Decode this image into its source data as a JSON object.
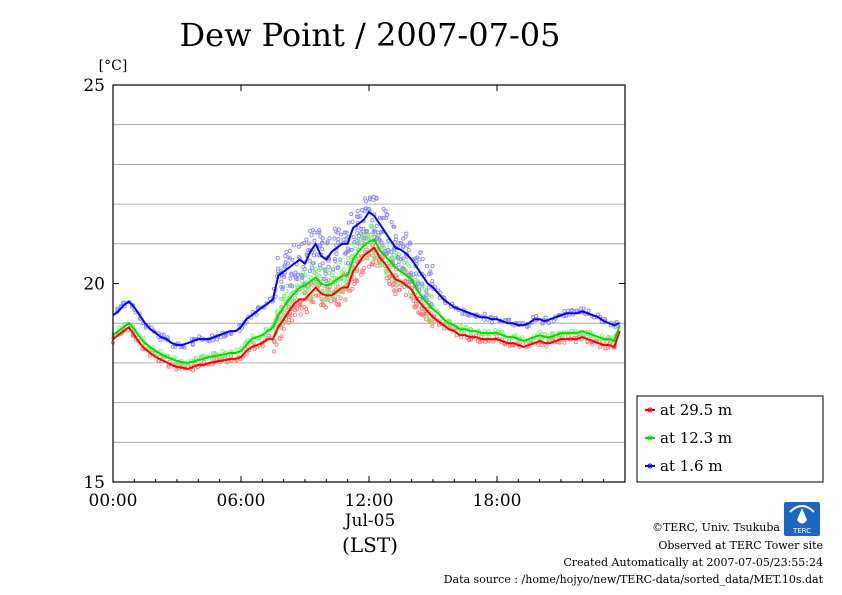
{
  "chart_data": {
    "type": "line",
    "title": "Dew Point / 2007-07-05",
    "ylabel": "[°C]",
    "ylim": [
      15,
      25
    ],
    "yticks": [
      15,
      20,
      25
    ],
    "y_gridlines": [
      16,
      17,
      18,
      19,
      21,
      22,
      23,
      24
    ],
    "xlim": [
      0,
      24
    ],
    "xticks": [
      {
        "value": 0,
        "label": "00:00"
      },
      {
        "value": 6,
        "label": "06:00"
      },
      {
        "value": 12,
        "label": "12:00"
      },
      {
        "value": 18,
        "label": "18:00"
      }
    ],
    "date_label": "Jul-05",
    "time_zone_label": "(LST)",
    "grid": "horizontal",
    "legend_position": "bottom-right",
    "series": [
      {
        "name": "at 29.5 m",
        "color": "#ff0000",
        "scatter_color": "#ff7a7a",
        "x": [
          0,
          0.25,
          0.5,
          0.75,
          1,
          1.25,
          1.5,
          1.75,
          2,
          2.25,
          2.5,
          2.75,
          3,
          3.25,
          3.5,
          3.75,
          4,
          4.25,
          4.5,
          4.75,
          5,
          5.25,
          5.5,
          5.75,
          6,
          6.25,
          6.5,
          6.75,
          7,
          7.25,
          7.5,
          7.75,
          8,
          8.25,
          8.5,
          8.75,
          9,
          9.25,
          9.5,
          9.75,
          10,
          10.25,
          10.5,
          10.75,
          11,
          11.25,
          11.5,
          11.75,
          12,
          12.25,
          12.5,
          12.75,
          13,
          13.25,
          13.5,
          13.75,
          14,
          14.25,
          14.5,
          14.75,
          15,
          15.25,
          15.5,
          15.75,
          16,
          16.25,
          16.5,
          16.75,
          17,
          17.25,
          17.5,
          17.75,
          18,
          18.25,
          18.5,
          18.75,
          19,
          19.25,
          19.5,
          19.75,
          20,
          20.25,
          20.5,
          20.75,
          21,
          21.25,
          21.5,
          21.75,
          22,
          22.25,
          22.5,
          22.75,
          23,
          23.25,
          23.5,
          23.75
        ],
        "values": [
          18.6,
          18.7,
          18.8,
          18.9,
          18.7,
          18.5,
          18.35,
          18.25,
          18.15,
          18.08,
          18.02,
          17.95,
          17.9,
          17.88,
          17.85,
          17.9,
          17.95,
          17.95,
          18.0,
          18.02,
          18.05,
          18.07,
          18.1,
          18.1,
          18.15,
          18.3,
          18.4,
          18.45,
          18.5,
          18.6,
          18.6,
          18.9,
          19.1,
          19.3,
          19.5,
          19.6,
          19.6,
          19.75,
          19.9,
          19.75,
          19.7,
          19.7,
          19.8,
          19.9,
          19.9,
          20.3,
          20.5,
          20.7,
          20.8,
          20.9,
          20.65,
          20.5,
          20.3,
          20.1,
          20.05,
          19.95,
          19.85,
          19.6,
          19.45,
          19.3,
          19.15,
          19.05,
          18.95,
          18.85,
          18.8,
          18.7,
          18.7,
          18.65,
          18.65,
          18.6,
          18.6,
          18.6,
          18.6,
          18.55,
          18.5,
          18.5,
          18.45,
          18.4,
          18.45,
          18.5,
          18.55,
          18.5,
          18.5,
          18.55,
          18.6,
          18.6,
          18.6,
          18.6,
          18.65,
          18.6,
          18.55,
          18.5,
          18.45,
          18.45,
          18.4,
          18.8
        ]
      },
      {
        "name": "at 12.3 m",
        "color": "#00dd00",
        "scatter_color": "#7ef07e",
        "x": [
          0,
          0.25,
          0.5,
          0.75,
          1,
          1.25,
          1.5,
          1.75,
          2,
          2.25,
          2.5,
          2.75,
          3,
          3.25,
          3.5,
          3.75,
          4,
          4.25,
          4.5,
          4.75,
          5,
          5.25,
          5.5,
          5.75,
          6,
          6.25,
          6.5,
          6.75,
          7,
          7.25,
          7.5,
          7.75,
          8,
          8.25,
          8.5,
          8.75,
          9,
          9.25,
          9.5,
          9.75,
          10,
          10.25,
          10.5,
          10.75,
          11,
          11.25,
          11.5,
          11.75,
          12,
          12.25,
          12.5,
          12.75,
          13,
          13.25,
          13.5,
          13.75,
          14,
          14.25,
          14.5,
          14.75,
          15,
          15.25,
          15.5,
          15.75,
          16,
          16.25,
          16.5,
          16.75,
          17,
          17.25,
          17.5,
          17.75,
          18,
          18.25,
          18.5,
          18.75,
          19,
          19.25,
          19.5,
          19.75,
          20,
          20.25,
          20.5,
          20.75,
          21,
          21.25,
          21.5,
          21.75,
          22,
          22.25,
          22.5,
          22.75,
          23,
          23.25,
          23.5,
          23.75
        ],
        "values": [
          18.7,
          18.8,
          18.9,
          19.0,
          18.85,
          18.65,
          18.5,
          18.4,
          18.3,
          18.22,
          18.15,
          18.1,
          18.05,
          18.02,
          18.0,
          18.03,
          18.07,
          18.1,
          18.15,
          18.17,
          18.2,
          18.22,
          18.25,
          18.25,
          18.3,
          18.45,
          18.6,
          18.65,
          18.7,
          18.8,
          18.9,
          19.2,
          19.4,
          19.6,
          19.75,
          19.9,
          19.95,
          20.05,
          20.15,
          20.0,
          19.95,
          20.0,
          20.1,
          20.2,
          20.2,
          20.6,
          20.8,
          20.95,
          21.05,
          21.1,
          20.85,
          20.7,
          20.55,
          20.4,
          20.3,
          20.2,
          20.1,
          19.85,
          19.65,
          19.5,
          19.35,
          19.25,
          19.1,
          19.0,
          18.95,
          18.85,
          18.85,
          18.8,
          18.8,
          18.75,
          18.75,
          18.75,
          18.75,
          18.7,
          18.65,
          18.65,
          18.6,
          18.55,
          18.6,
          18.65,
          18.7,
          18.65,
          18.65,
          18.7,
          18.75,
          18.75,
          18.75,
          18.75,
          18.8,
          18.75,
          18.7,
          18.65,
          18.6,
          18.6,
          18.55,
          18.95
        ]
      },
      {
        "name": "at 1.6 m",
        "color": "#0000ff",
        "scatter_color": "#8a8aff",
        "x": [
          0,
          0.25,
          0.5,
          0.75,
          1,
          1.25,
          1.5,
          1.75,
          2,
          2.25,
          2.5,
          2.75,
          3,
          3.25,
          3.5,
          3.75,
          4,
          4.25,
          4.5,
          4.75,
          5,
          5.25,
          5.5,
          5.75,
          6,
          6.25,
          6.5,
          6.75,
          7,
          7.25,
          7.5,
          7.75,
          8,
          8.25,
          8.5,
          8.75,
          9,
          9.25,
          9.5,
          9.75,
          10,
          10.25,
          10.5,
          10.75,
          11,
          11.25,
          11.5,
          11.75,
          12,
          12.25,
          12.5,
          12.75,
          13,
          13.25,
          13.5,
          13.75,
          14,
          14.25,
          14.5,
          14.75,
          15,
          15.25,
          15.5,
          15.75,
          16,
          16.25,
          16.5,
          16.75,
          17,
          17.25,
          17.5,
          17.75,
          18,
          18.25,
          18.5,
          18.75,
          19,
          19.25,
          19.5,
          19.75,
          20,
          20.25,
          20.5,
          20.75,
          21,
          21.25,
          21.5,
          21.75,
          22,
          22.25,
          22.5,
          22.75,
          23,
          23.25,
          23.5,
          23.75
        ],
        "values": [
          19.2,
          19.3,
          19.45,
          19.55,
          19.4,
          19.2,
          19.0,
          18.85,
          18.75,
          18.65,
          18.6,
          18.5,
          18.45,
          18.45,
          18.5,
          18.55,
          18.6,
          18.6,
          18.6,
          18.65,
          18.7,
          18.75,
          18.8,
          18.8,
          18.9,
          19.1,
          19.2,
          19.3,
          19.4,
          19.5,
          19.6,
          20.2,
          20.3,
          20.4,
          20.5,
          20.6,
          20.5,
          20.8,
          21.0,
          20.7,
          20.6,
          20.8,
          20.9,
          21.0,
          21.0,
          21.4,
          21.5,
          21.6,
          21.8,
          21.7,
          21.5,
          21.3,
          21.1,
          20.9,
          20.85,
          20.75,
          20.6,
          20.4,
          20.2,
          20.0,
          19.9,
          19.75,
          19.6,
          19.5,
          19.4,
          19.35,
          19.3,
          19.25,
          19.2,
          19.15,
          19.15,
          19.1,
          19.1,
          19.05,
          19.0,
          19.0,
          18.95,
          18.95,
          19.0,
          19.1,
          19.1,
          19.05,
          19.1,
          19.15,
          19.2,
          19.25,
          19.25,
          19.25,
          19.3,
          19.25,
          19.2,
          19.15,
          19.05,
          19.0,
          18.95,
          19.0
        ]
      }
    ]
  },
  "credits": {
    "copyright": "©TERC, Univ. Tsukuba",
    "observed": "Observed at TERC Tower site",
    "created": "Created Automatically at 2007-07-05/23:55:24",
    "source": "Data source : /home/hojyo/new/TERC-data/sorted_data/MET.10s.dat",
    "logo_text": "TERC"
  }
}
